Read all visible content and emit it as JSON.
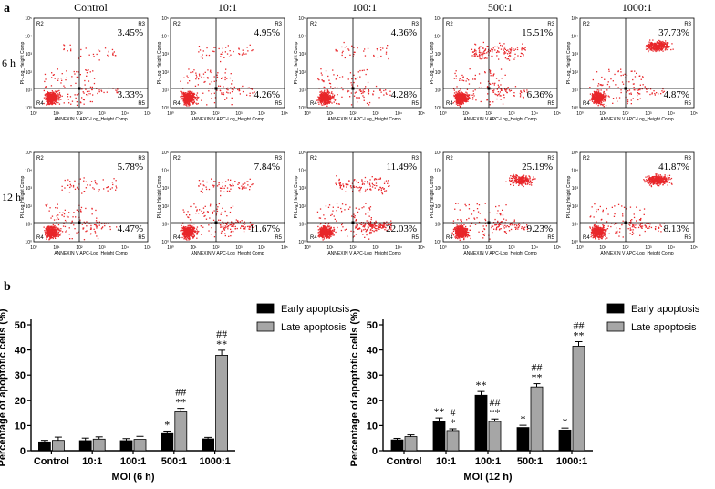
{
  "panel_a": {
    "label": "a",
    "columns": [
      "Control",
      "10:1",
      "100:1",
      "500:1",
      "1000:1"
    ],
    "rows": [
      "6 h",
      "12 h"
    ],
    "x_axis_label": "ANNEXIN V APC-Log_Height Comp",
    "y_axis_label": "PI-Log_Height Comp",
    "tick_labels": [
      "10⁰",
      "10¹",
      "10²",
      "10³",
      "10⁴",
      "10⁵"
    ],
    "region_labels": {
      "upper_left": "R2",
      "upper_right": "R3",
      "lower_left": "R4",
      "lower_right": "R5"
    },
    "plots": [
      {
        "row": 0,
        "col": 0,
        "late": "3.45%",
        "early": "3.33%"
      },
      {
        "row": 0,
        "col": 1,
        "late": "4.95%",
        "early": "4.26%"
      },
      {
        "row": 0,
        "col": 2,
        "late": "4.36%",
        "early": "4.28%"
      },
      {
        "row": 0,
        "col": 3,
        "late": "15.51%",
        "early": "6.36%"
      },
      {
        "row": 0,
        "col": 4,
        "late": "37.73%",
        "early": "4.87%"
      },
      {
        "row": 1,
        "col": 0,
        "late": "5.78%",
        "early": "4.47%"
      },
      {
        "row": 1,
        "col": 1,
        "late": "7.84%",
        "early": "11.67%"
      },
      {
        "row": 1,
        "col": 2,
        "late": "11.49%",
        "early": "22.03%"
      },
      {
        "row": 1,
        "col": 3,
        "late": "25.19%",
        "early": "9.23%"
      },
      {
        "row": 1,
        "col": 4,
        "late": "41.87%",
        "early": "8.13%"
      }
    ]
  },
  "panel_b": {
    "label": "b",
    "legend": [
      "Early apoptosis",
      "Late apoptosis"
    ]
  },
  "colors": {
    "dots": "#e8262a",
    "early_bar": "#000000",
    "late_bar": "#a6a6a6"
  },
  "chart_data": [
    {
      "type": "bar",
      "title": "",
      "xlabel": "MOI (6 h)",
      "ylabel": "Percentage of apoptotic cells (%)",
      "ylim": [
        0,
        50
      ],
      "yticks": [
        0,
        10,
        20,
        30,
        40,
        50
      ],
      "categories": [
        "Control",
        "10:1",
        "100:1",
        "500:1",
        "1000:1"
      ],
      "series": [
        {
          "name": "Early apoptosis",
          "values": [
            3.5,
            4.0,
            4.0,
            6.8,
            4.7
          ],
          "errors": [
            0.6,
            1.0,
            0.8,
            1.0,
            0.6
          ],
          "annotations": [
            "",
            "",
            "",
            "*",
            ""
          ]
        },
        {
          "name": "Late apoptosis",
          "values": [
            4.1,
            4.6,
            4.5,
            15.4,
            37.9
          ],
          "errors": [
            1.3,
            0.9,
            1.2,
            1.4,
            2.0
          ],
          "annotations": [
            "",
            "",
            "",
            "##\n**",
            "##\n**"
          ]
        }
      ],
      "legend_position": "top-right"
    },
    {
      "type": "bar",
      "title": "",
      "xlabel": "MOI (12 h)",
      "ylabel": "Percentage of apoptotic cells (%)",
      "ylim": [
        0,
        50
      ],
      "yticks": [
        0,
        10,
        20,
        30,
        40,
        50
      ],
      "categories": [
        "Control",
        "10:1",
        "100:1",
        "500:1",
        "1000:1"
      ],
      "series": [
        {
          "name": "Early apoptosis",
          "values": [
            4.3,
            11.8,
            22.0,
            9.2,
            8.2
          ],
          "errors": [
            0.6,
            1.2,
            1.5,
            0.9,
            0.8
          ],
          "annotations": [
            "",
            "**",
            "**",
            "*",
            "*"
          ]
        },
        {
          "name": "Late apoptosis",
          "values": [
            5.6,
            8.0,
            11.6,
            25.3,
            41.5
          ],
          "errors": [
            0.7,
            0.7,
            1.0,
            1.3,
            1.8
          ],
          "annotations": [
            "",
            "#\n*",
            "##\n**",
            "##\n**",
            "##\n**"
          ]
        }
      ],
      "legend_position": "top-right"
    }
  ]
}
